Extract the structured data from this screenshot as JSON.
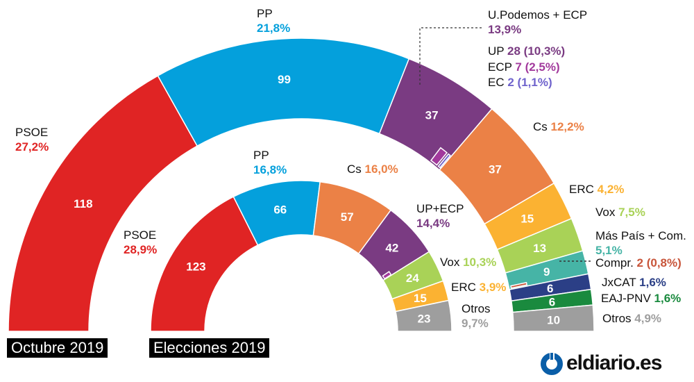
{
  "chart_data": [
    {
      "type": "pie",
      "variant": "hemicycle",
      "tag": "Octubre 2019",
      "total_seats": 350,
      "segments": [
        {
          "party": "PSOE",
          "seats": 118,
          "pct": "27,2%",
          "color": "#e02424"
        },
        {
          "party": "PP",
          "seats": 99,
          "pct": "21,8%",
          "color": "#04a0dc"
        },
        {
          "party": "U.Podemos + ECP",
          "seats": 37,
          "pct": "13,9%",
          "color": "#7a3b82",
          "sub": [
            {
              "party": "UP",
              "seats": 28,
              "pct": "10,3%",
              "color": "#7a3b82"
            },
            {
              "party": "ECP",
              "seats": 7,
              "pct": "2,5%",
              "color": "#a2399c"
            },
            {
              "party": "EC",
              "seats": 2,
              "pct": "1,1%",
              "color": "#6f63cc"
            }
          ]
        },
        {
          "party": "Cs",
          "seats": 37,
          "pct": "12,2%",
          "color": "#eb8146"
        },
        {
          "party": "ERC",
          "seats": 15,
          "pct": "4,2%",
          "color": "#fbb232"
        },
        {
          "party": "Vox",
          "seats": 13,
          "pct": "7,5%",
          "color": "#a9d257"
        },
        {
          "party": "Más País + Com.",
          "seats": 9,
          "pct": "5,1%",
          "color": "#46b4a6",
          "sub": [
            {
              "party": "Compr.",
              "seats": 2,
              "pct": "0,8%",
              "color": "#c8553a"
            }
          ]
        },
        {
          "party": "JxCAT",
          "seats": 6,
          "pct": "1,6%",
          "color": "#2b3f86"
        },
        {
          "party": "EAJ-PNV",
          "seats": 6,
          "pct": "1,6%",
          "color": "#1a8a3e"
        },
        {
          "party": "Otros",
          "seats": 10,
          "pct": "4,9%",
          "color": "#9e9e9e"
        }
      ]
    },
    {
      "type": "pie",
      "variant": "hemicycle",
      "tag": "Elecciones 2019",
      "total_seats": 350,
      "segments": [
        {
          "party": "PSOE",
          "seats": 123,
          "pct": "28,9%",
          "color": "#e02424"
        },
        {
          "party": "PP",
          "seats": 66,
          "pct": "16,8%",
          "color": "#04a0dc"
        },
        {
          "party": "Cs",
          "seats": 57,
          "pct": "16,0%",
          "color": "#eb8146"
        },
        {
          "party": "UP+ECP",
          "seats": 42,
          "pct": "14,4%",
          "color": "#7a3b82",
          "sub": [
            {
              "party": "ECP",
              "seats": 7,
              "color": "#a2399c"
            }
          ]
        },
        {
          "party": "Vox",
          "seats": 24,
          "pct": "10,3%",
          "color": "#a9d257"
        },
        {
          "party": "ERC",
          "seats": 15,
          "pct": "3,9%",
          "color": "#fbb232"
        },
        {
          "party": "Otros",
          "seats": 23,
          "pct": "9,7%",
          "color": "#9e9e9e"
        }
      ]
    }
  ],
  "labels": {
    "outer": {
      "psoe": {
        "name": "PSOE",
        "pct": "27,2%"
      },
      "pp": {
        "name": "PP",
        "pct": "21,8%"
      },
      "up_ecp": {
        "name": "U.Podemos + ECP",
        "pct": "13,9%"
      },
      "up": {
        "name": "UP",
        "detail": "28 (10,3%)"
      },
      "ecp": {
        "name": "ECP",
        "detail": "7 (2,5%)"
      },
      "ec": {
        "name": "EC",
        "detail": "2 (1,1%)"
      },
      "cs": {
        "name": "Cs",
        "pct": "12,2%"
      },
      "erc": {
        "name": "ERC",
        "pct": "4,2%"
      },
      "vox": {
        "name": "Vox",
        "pct": "7,5%"
      },
      "mp": {
        "name": "Más País + Com.",
        "pct": "5,1%"
      },
      "compr": {
        "name": "Compr.",
        "detail": "2 (0,8%)"
      },
      "jxcat": {
        "name": "JxCAT",
        "pct": "1,6%"
      },
      "pnv": {
        "name": "EAJ-PNV",
        "pct": "1,6%"
      },
      "otros": {
        "name": "Otros",
        "pct": "4,9%"
      }
    },
    "inner": {
      "psoe": {
        "name": "PSOE",
        "pct": "28,9%"
      },
      "pp": {
        "name": "PP",
        "pct": "16,8%"
      },
      "cs": {
        "name": "Cs",
        "pct": "16,0%"
      },
      "up": {
        "name": "UP+ECP",
        "pct": "14,4%"
      },
      "vox": {
        "name": "Vox",
        "pct": "10,3%"
      },
      "erc": {
        "name": "ERC",
        "pct": "3,9%"
      },
      "otros": {
        "name": "Otros",
        "pct": "9,7%"
      }
    }
  },
  "tags": {
    "outer": "Octubre 2019",
    "inner": "Elecciones 2019"
  },
  "logo": {
    "text": "eldiario.es",
    "color": "#0a5ea8"
  }
}
